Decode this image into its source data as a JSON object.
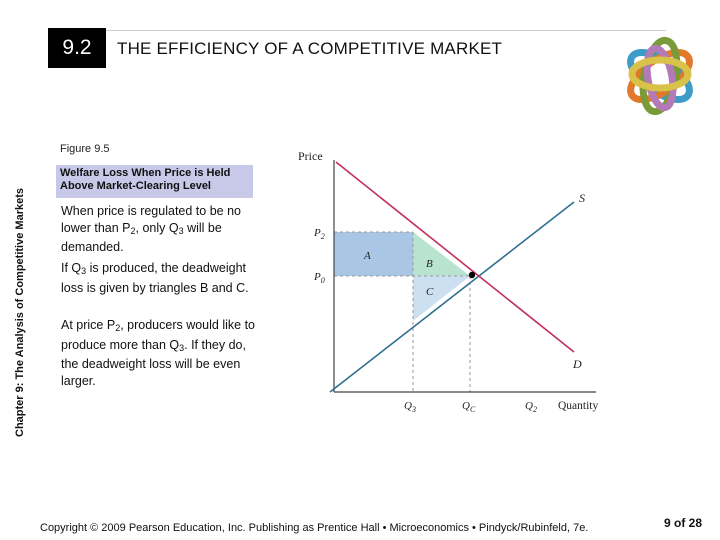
{
  "header": {
    "section_number": "9.2",
    "title": "THE EFFICIENCY OF A COMPETITIVE MARKET"
  },
  "sidebar": {
    "chapter_label": "Chapter 9: The Analysis of Competitive Markets"
  },
  "figure": {
    "number": "Figure 9.5",
    "caption": "Welfare Loss When Price is Held Above Market-Clearing Level"
  },
  "body": {
    "p1": {
      "pre": "When price is regulated to be no lower than P",
      "sub1": "2",
      "mid": ", only Q",
      "sub2": "3",
      "post": " will be demanded."
    },
    "p2": {
      "pre": "If Q",
      "sub1": "3",
      "post": " is produced, the deadweight loss is given by triangles B and C."
    },
    "p3": {
      "pre": "At price P",
      "sub1": "2",
      "mid": ", producers would like to produce more than Q",
      "sub2": "3",
      "post": ". If they do, the deadweight loss will be even larger."
    }
  },
  "diagram": {
    "y_axis_label": "Price",
    "x_axis_label": "Quantity",
    "supply_label": "S",
    "demand_label": "D",
    "p2_label": "P",
    "p2_sub": "2",
    "pc_label": "P",
    "pc_sub": "0",
    "q3_label": "Q",
    "q3_sub": "3",
    "qc_label": "Q",
    "qc_sub": "C",
    "q2_label": "Q",
    "q2_sub": "2",
    "area_a": "A",
    "area_b": "B",
    "area_c": "C",
    "colors": {
      "supply": "#2e6f8f",
      "demand": "#c0305a",
      "area_a": "#a9c6e4",
      "area_b": "#b7e3cf",
      "area_c": "#cde0f2"
    }
  },
  "footer": {
    "copyright": "Copyright © 2009 Pearson Education, Inc. Publishing as Prentice Hall • Microeconomics • Pindyck/Rubinfeld, 7e.",
    "page": "9 of 28"
  }
}
